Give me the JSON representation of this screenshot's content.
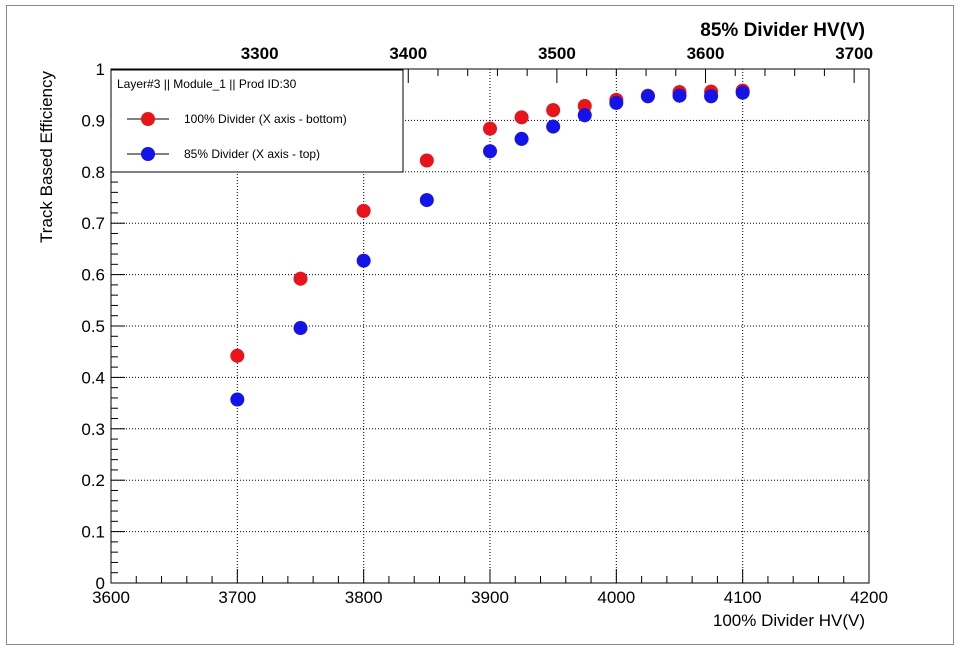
{
  "chart_data": {
    "type": "scatter",
    "bottom_axis": {
      "label": "100% Divider HV(V)",
      "range": [
        3600,
        4200
      ],
      "ticks": [
        3600,
        3700,
        3800,
        3900,
        4000,
        4100,
        4200
      ],
      "tick_labels": [
        "3600",
        "3700",
        "3800",
        "3900",
        "4000",
        "4100",
        "4200"
      ]
    },
    "top_axis": {
      "label": "85% Divider HV(V)",
      "range": [
        3200,
        3710
      ],
      "ticks": [
        3300,
        3400,
        3500,
        3600,
        3700
      ],
      "tick_labels": [
        "3300",
        "3400",
        "3500",
        "3600",
        "3700"
      ]
    },
    "y_axis": {
      "label": "Track Based Efficiency",
      "range": [
        0,
        1
      ],
      "ticks": [
        0,
        0.1,
        0.2,
        0.3,
        0.4,
        0.5,
        0.6,
        0.7,
        0.8,
        0.9,
        1
      ],
      "tick_labels": [
        "0",
        "0.1",
        "0.2",
        "0.3",
        "0.4",
        "0.5",
        "0.6",
        "0.7",
        "0.8",
        "0.9",
        "1"
      ]
    },
    "grid": true,
    "legend": {
      "title": "Layer#3 || Module_1 || Prod ID:30",
      "position": "top-left"
    },
    "series": [
      {
        "name": "100% Divider (X axis - bottom)",
        "color": "#e8141c",
        "axis": "bottom",
        "x": [
          3700,
          3750,
          3800,
          3850,
          3900,
          3925,
          3950,
          3975,
          4000,
          4025,
          4050,
          4075,
          4100
        ],
        "y": [
          0.442,
          0.592,
          0.724,
          0.822,
          0.884,
          0.906,
          0.92,
          0.928,
          0.94,
          0.948,
          0.955,
          0.956,
          0.958
        ]
      },
      {
        "name": "85% Divider (X axis - top)",
        "color": "#1414e8",
        "axis": "top",
        "x": [
          3700,
          3750,
          3800,
          3850,
          3900,
          3925,
          3950,
          3975,
          4000,
          4025,
          4050,
          4075,
          4100
        ],
        "y": [
          0.357,
          0.496,
          0.627,
          0.745,
          0.84,
          0.864,
          0.888,
          0.91,
          0.934,
          0.947,
          0.948,
          0.947,
          0.954
        ]
      }
    ]
  }
}
